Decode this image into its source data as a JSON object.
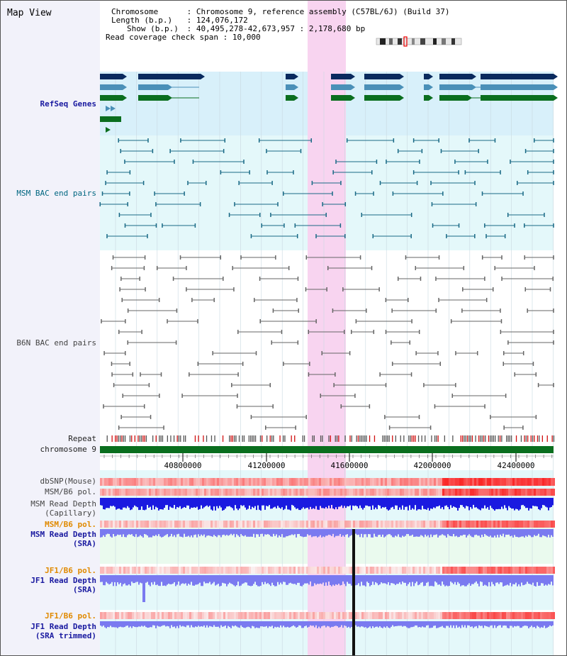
{
  "title": "Map View",
  "info": {
    "chromosome_label": "Chromosome",
    "chromosome_value": "Chromosome 9, reference assembly (C57BL/6J) (Build 37)",
    "length_label": "Length (b.p.)",
    "length_value": "124,076,172",
    "show_label": "Show (b.p.)",
    "show_value": "40,495,278-42,673,957 : 2,178,680 bp",
    "coverage_label": "Read coverage check span",
    "coverage_value": "10,000"
  },
  "tracks": {
    "refseq": "RefSeq Genes",
    "msm_bac": "MSM BAC end pairs",
    "b6n_bac": "B6N BAC end pairs",
    "repeat": "Repeat",
    "chrom": "chromosome 9",
    "dbsnp": "dbSNP(Mouse)",
    "msm_b6_pol_1": "MSM/B6 pol.",
    "msm_depth_cap_1": "MSM Read Depth",
    "msm_depth_cap_2": "(Capillary)",
    "msm_b6_pol_2": "MSM/B6 pol.",
    "msm_depth_sra_1": "MSM Read Depth",
    "msm_depth_sra_2": "(SRA)",
    "jf1_b6_pol_1": "JF1/B6 pol.",
    "jf1_depth_sra_1": "JF1 Read Depth",
    "jf1_depth_sra_2": "(SRA)",
    "jf1_b6_pol_2": "JF1/B6 pol.",
    "jf1_depth_trim_1": "JF1 Read Depth",
    "jf1_depth_trim_2": "(SRA trimmed)"
  },
  "axis": {
    "ticks": [
      "40800000",
      "41200000",
      "41600000",
      "42000000",
      "42400000"
    ]
  },
  "colors": {
    "highlight": "#f8d4f0",
    "refseq_dark": "#0a2a5e",
    "refseq_mid": "#4a90b8",
    "refseq_green": "#0a6e1e",
    "msm_bac": "#1a6a86",
    "b6n_bac": "#666666",
    "chrom_bar": "#0a6e1e",
    "depth_capillary": "#1a1ae0",
    "depth_sra": "#7a7af0"
  }
}
